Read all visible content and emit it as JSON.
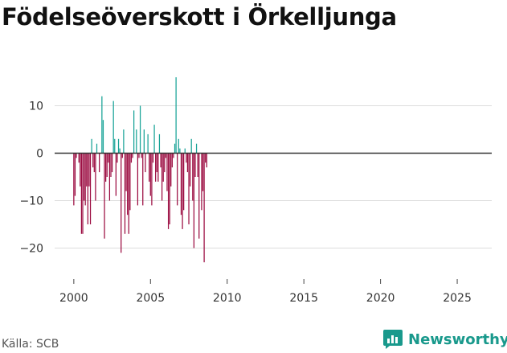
{
  "title": "Födelseöverskott i Örkelljunga",
  "source": "Källa: SCB",
  "brand": {
    "label": "Newsworthy",
    "icon": "newsworthy-logo-icon"
  },
  "colors": {
    "positive": "#16a296",
    "negative": "#9b0b40",
    "zero_line": "#333333",
    "grid": "#dddddd",
    "brand": "#19998c"
  },
  "chart_data": {
    "type": "bar",
    "title": "Födelseöverskott i Örkelljunga",
    "xlabel": "",
    "ylabel": "",
    "xlim": [
      1998.75,
      2027.25
    ],
    "ylim": [
      -25,
      20
    ],
    "y_ticks": [
      10,
      0,
      -10,
      -20
    ],
    "y_tick_labels": [
      "10",
      "0",
      "−10",
      "−20"
    ],
    "x_ticks": [
      2000,
      2005,
      2010,
      2015,
      2020,
      2025
    ],
    "x_tick_labels": [
      "2000",
      "2005",
      "2010",
      "2015",
      "2020",
      "2025"
    ],
    "grid": "horizontal",
    "bar_period": "month",
    "series_start": {
      "year": 2000,
      "month": 1
    },
    "values": [
      -11,
      -9,
      -1,
      0,
      -2,
      -7,
      -17,
      -17,
      -10,
      -11,
      -7,
      -15,
      -7,
      -15,
      3,
      -3,
      -4,
      -10,
      2,
      0,
      -4,
      0,
      12,
      7,
      -18,
      -6,
      -5,
      -2,
      -10,
      -5,
      -4,
      11,
      3,
      -9,
      -2,
      3,
      1,
      -21,
      -1,
      5,
      -17,
      -8,
      -13,
      -17,
      -12,
      -2,
      -1,
      9,
      0,
      5,
      -11,
      -1,
      10,
      -1,
      -11,
      5,
      -4,
      0,
      4,
      -6,
      -9,
      -11,
      -2,
      6,
      -6,
      -4,
      -6,
      4,
      -3,
      -10,
      -6,
      -4,
      -1,
      -8,
      -16,
      -15,
      -7,
      -3,
      -1,
      2,
      16,
      -11,
      3,
      1,
      -13,
      -16,
      -12,
      1,
      -2,
      -4,
      -15,
      -7,
      3,
      -10,
      -20,
      -5,
      2,
      -5,
      -18,
      0,
      -12,
      -8,
      -23,
      -2,
      -3
    ]
  }
}
